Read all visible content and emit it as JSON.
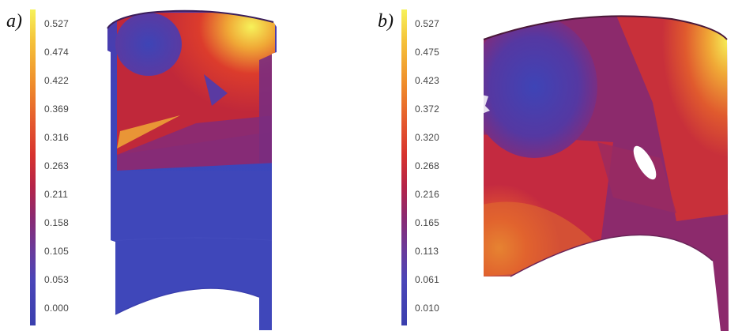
{
  "panel_a": {
    "label": "a)",
    "scale_ticks": [
      "0.527",
      "0.474",
      "0.422",
      "0.369",
      "0.316",
      "0.263",
      "0.211",
      "0.158",
      "0.105",
      "0.053",
      "0.000"
    ]
  },
  "panel_b": {
    "label": "b)",
    "scale_ticks": [
      "0.527",
      "0.475",
      "0.423",
      "0.372",
      "0.320",
      "0.268",
      "0.216",
      "0.165",
      "0.113",
      "0.061",
      "0.010"
    ]
  },
  "colors": {
    "max": "#f6f25a",
    "high": "#ef8b2b",
    "mid": "#d7332e",
    "low_mid": "#8a2a72",
    "min": "#3a3fae"
  }
}
